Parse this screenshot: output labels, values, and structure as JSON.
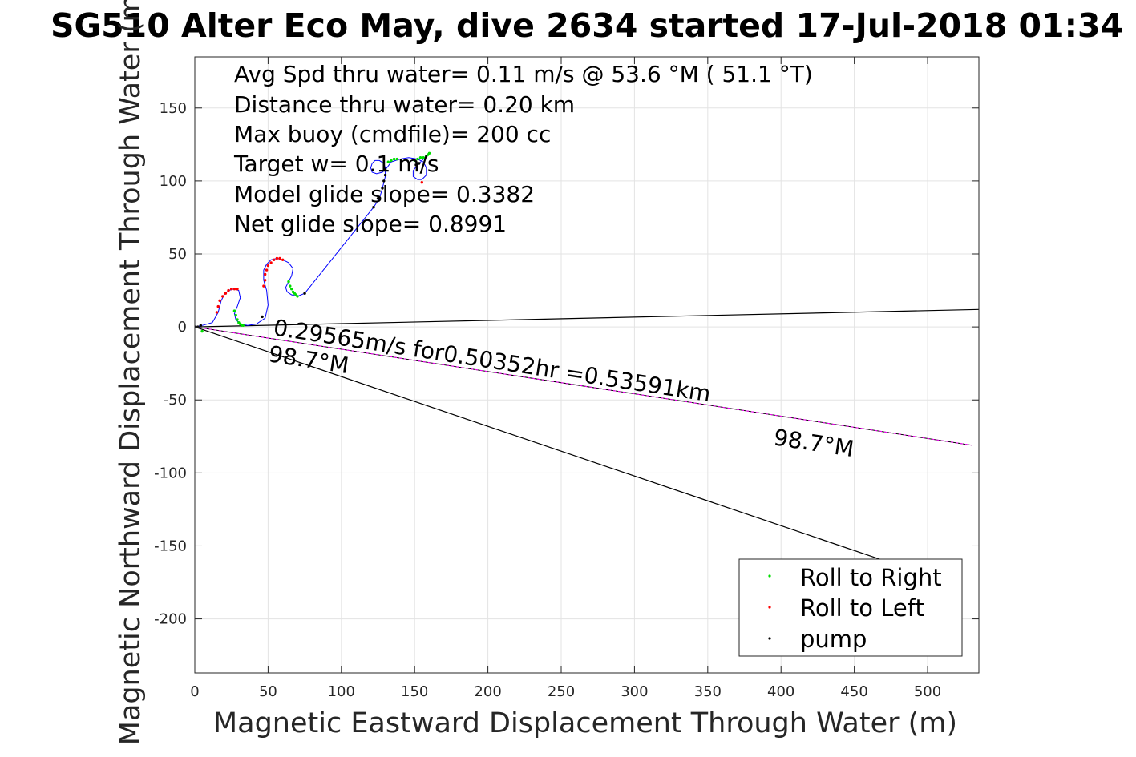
{
  "chart_data": {
    "type": "scatter",
    "title": "SG510 Alter Eco May, dive 2634 started 17-Jul-2018 01:34",
    "xlabel": "Magnetic Eastward Displacement Through Water (m)",
    "ylabel": "Magnetic Northward Displacement Through Water (m)",
    "xlim": [
      0,
      535
    ],
    "ylim": [
      -237,
      185
    ],
    "xticks": [
      0,
      50,
      100,
      150,
      200,
      250,
      300,
      350,
      400,
      450,
      500
    ],
    "yticks": [
      -200,
      -150,
      -100,
      -50,
      0,
      50,
      100,
      150
    ],
    "grid": true,
    "stats_text": [
      "Avg Spd thru water=  0.11 m/s @  53.6 °M ( 51.1 °T)",
      "Distance thru water=  0.20 km",
      "Max buoy (cmdfile)= 200 cc",
      "Target w= 0.1 m/s",
      "Model glide slope= 0.3382",
      "Net glide slope= 0.8991"
    ],
    "current_label": "0.29565m/s for0.50352hr =0.53591km",
    "heading_label_near": "98.7°M",
    "heading_label_far": "98.7°M",
    "legend_position": "bottom-right",
    "colors": {
      "track": "#0000ff",
      "roll_right": "#00dd00",
      "roll_left": "#ff0000",
      "pump": "#000000",
      "current_line": "#ff00ff",
      "ref_line": "#000000",
      "grid": "#e3e3e3"
    },
    "series": [
      {
        "name": "track",
        "role": "glider path",
        "x": [
          0,
          5,
          12,
          16,
          18,
          20,
          23,
          27,
          30,
          31,
          29,
          27,
          28,
          31,
          36,
          42,
          48,
          50,
          49,
          47,
          47,
          49,
          52,
          56,
          60,
          64,
          67,
          66,
          64,
          62,
          63,
          66,
          70,
          75,
          122,
          126,
          128,
          130,
          130,
          129,
          126,
          123,
          121,
          120,
          121,
          124,
          128,
          131,
          134,
          140,
          146,
          152,
          156,
          158,
          158,
          155,
          152,
          149,
          149,
          152,
          155,
          157,
          158
        ],
        "y": [
          0,
          1,
          3,
          10,
          18,
          22,
          25,
          26,
          25,
          20,
          14,
          9,
          5,
          2,
          1,
          2,
          6,
          15,
          25,
          32,
          39,
          43,
          46,
          47,
          46,
          44,
          40,
          35,
          31,
          27,
          24,
          22,
          21,
          23,
          82,
          88,
          95,
          103,
          109,
          112,
          114,
          114,
          112,
          109,
          106,
          105,
          106,
          109,
          113,
          115,
          116,
          115,
          113,
          109,
          104,
          101,
          101,
          103,
          107,
          111,
          114,
          116,
          117
        ]
      },
      {
        "name": "Roll to Right",
        "x": [
          5,
          27,
          28,
          29,
          30,
          31,
          32,
          33,
          64,
          65,
          66,
          67,
          68,
          69,
          70,
          150,
          152,
          154,
          156,
          158,
          159,
          160,
          132,
          134,
          136,
          138
        ],
        "y": [
          -3,
          11,
          8,
          5,
          3,
          2,
          1,
          1,
          31,
          28,
          26,
          24,
          23,
          22,
          21,
          114,
          115,
          116,
          116,
          117,
          118,
          119,
          113,
          114,
          115,
          115
        ]
      },
      {
        "name": "Roll to Left",
        "x": [
          15,
          16,
          17,
          19,
          21,
          23,
          25,
          27,
          29,
          47,
          48,
          48,
          49,
          50,
          52,
          54,
          56,
          58,
          60,
          155
        ],
        "y": [
          10,
          14,
          18,
          21,
          23,
          25,
          26,
          26,
          26,
          28,
          32,
          36,
          39,
          42,
          44,
          46,
          47,
          47,
          46,
          99
        ]
      },
      {
        "name": "pump",
        "x": [
          0,
          2,
          4,
          46,
          75,
          122,
          125,
          128,
          129,
          130,
          130,
          151,
          153
        ],
        "y": [
          0,
          0,
          1,
          7,
          23,
          82,
          88,
          95,
          100,
          104,
          108,
          111,
          112
        ]
      },
      {
        "name": "depth-averaged current",
        "x": [
          0,
          530
        ],
        "y": [
          0,
          -81
        ]
      },
      {
        "name": "reference",
        "x": [
          0,
          535
        ],
        "y": [
          0,
          12
        ]
      },
      {
        "name": "reference",
        "x": [
          0,
          470
        ],
        "y": [
          0,
          -160
        ]
      }
    ]
  },
  "legend": [
    {
      "label": "Roll to Right",
      "color": "#00dd00"
    },
    {
      "label": "Roll to Left",
      "color": "#ff0000"
    },
    {
      "label": "pump",
      "color": "#000000"
    }
  ]
}
